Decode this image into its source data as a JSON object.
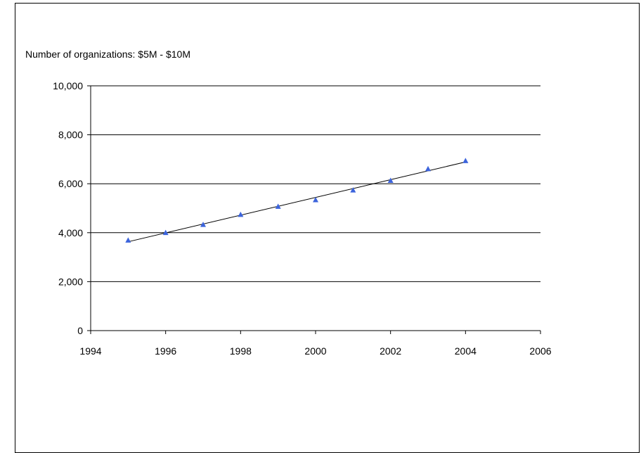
{
  "chart_data": {
    "type": "scatter",
    "title": "Number of organizations:  $5M - $10M",
    "xlabel": "",
    "ylabel": "",
    "xlim": [
      1994,
      2006
    ],
    "ylim": [
      0,
      10000
    ],
    "x_ticks": [
      "1994",
      "1996",
      "1998",
      "2000",
      "2002",
      "2004",
      "2006"
    ],
    "y_ticks": [
      "0",
      "2,000",
      "4,000",
      "6,000",
      "8,000",
      "10,000"
    ],
    "grid": "horizontal",
    "series": [
      {
        "x": [
          1995,
          1996,
          1997,
          1998,
          1999,
          2000,
          2001,
          2002,
          2003,
          2004
        ],
        "y": [
          3680,
          3990,
          4320,
          4730,
          5060,
          5330,
          5730,
          6120,
          6600,
          6930
        ],
        "marker": "triangle",
        "color": "#3c64dc"
      }
    ],
    "trendline": {
      "x": [
        1995,
        2004
      ],
      "y": [
        3630,
        6890
      ],
      "color": "#000000"
    }
  }
}
